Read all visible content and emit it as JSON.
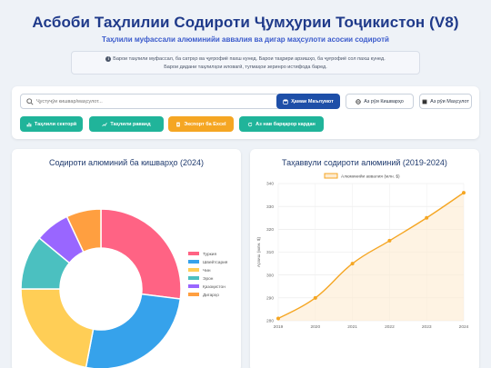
{
  "header": {
    "title": "Асбоби Таҳлилии Содироти Ҷумҳурии Тоҷикистон (V8)",
    "subtitle": "Таҳлили муфассали алюминийи аввалия ва дигар маҳсулоти асосии содиротӣ"
  },
  "info": {
    "line1": "Барои таҳлили муфассал, ба сатрҳо ва ҷуғрофиё пахш кунед. Барои таҳрири арзишҳо, ба ҷуғрофиё сол пахш кунед.",
    "line2": "Барои дидани таҳлилҳои иловагӣ, тугмаҳои зеринро истифода баред."
  },
  "toolbar": {
    "search_placeholder": "Ҷустуҷӯи кишвар/маҳсулот...",
    "all_data": "Ҳамаи Маълумот",
    "by_country": "Аз рӯи Кишварҳо",
    "by_product": "Аз рӯи Маҳсулот",
    "sector_analysis": "Таҳлили секторӣ",
    "trend_analysis": "Таҳлили раванд",
    "export_excel": "Экспорт ба Excel",
    "reset": "Аз нав барқарор кардан"
  },
  "colors": {
    "primary": "#1e4fa8",
    "teal": "#20b49a",
    "orange": "#f5a623"
  },
  "chart_data": [
    {
      "type": "pie",
      "title": "Содироти алюминий ба кишварҳо (2024)",
      "categories": [
        "Туркия",
        "Швейтсария",
        "Чин",
        "Эрон",
        "Қазоқистон",
        "Дигарҳо"
      ],
      "values": [
        27,
        26,
        22,
        11,
        7,
        7
      ],
      "colors": [
        "#ff6384",
        "#36a2eb",
        "#ffce56",
        "#4bc0c0",
        "#9966ff",
        "#ff9f40"
      ],
      "legend": "right",
      "donut": true
    },
    {
      "type": "line",
      "title": "Таҳаввули содироти алюминий (2019-2024)",
      "x": [
        "2019",
        "2020",
        "2021",
        "2022",
        "2023",
        "2024"
      ],
      "series": [
        {
          "name": "Алюминийи аввалия (млн. $)",
          "values": [
            281,
            290,
            305,
            315,
            325,
            336
          ]
        }
      ],
      "ylabel": "Арзиш (млн. $)",
      "ylim": [
        280,
        340
      ],
      "yticks": [
        "280",
        "290",
        "300",
        "310",
        "320",
        "330",
        "340"
      ],
      "color": "#f5a623",
      "fill": "area",
      "grid": true,
      "legend": "top"
    }
  ]
}
